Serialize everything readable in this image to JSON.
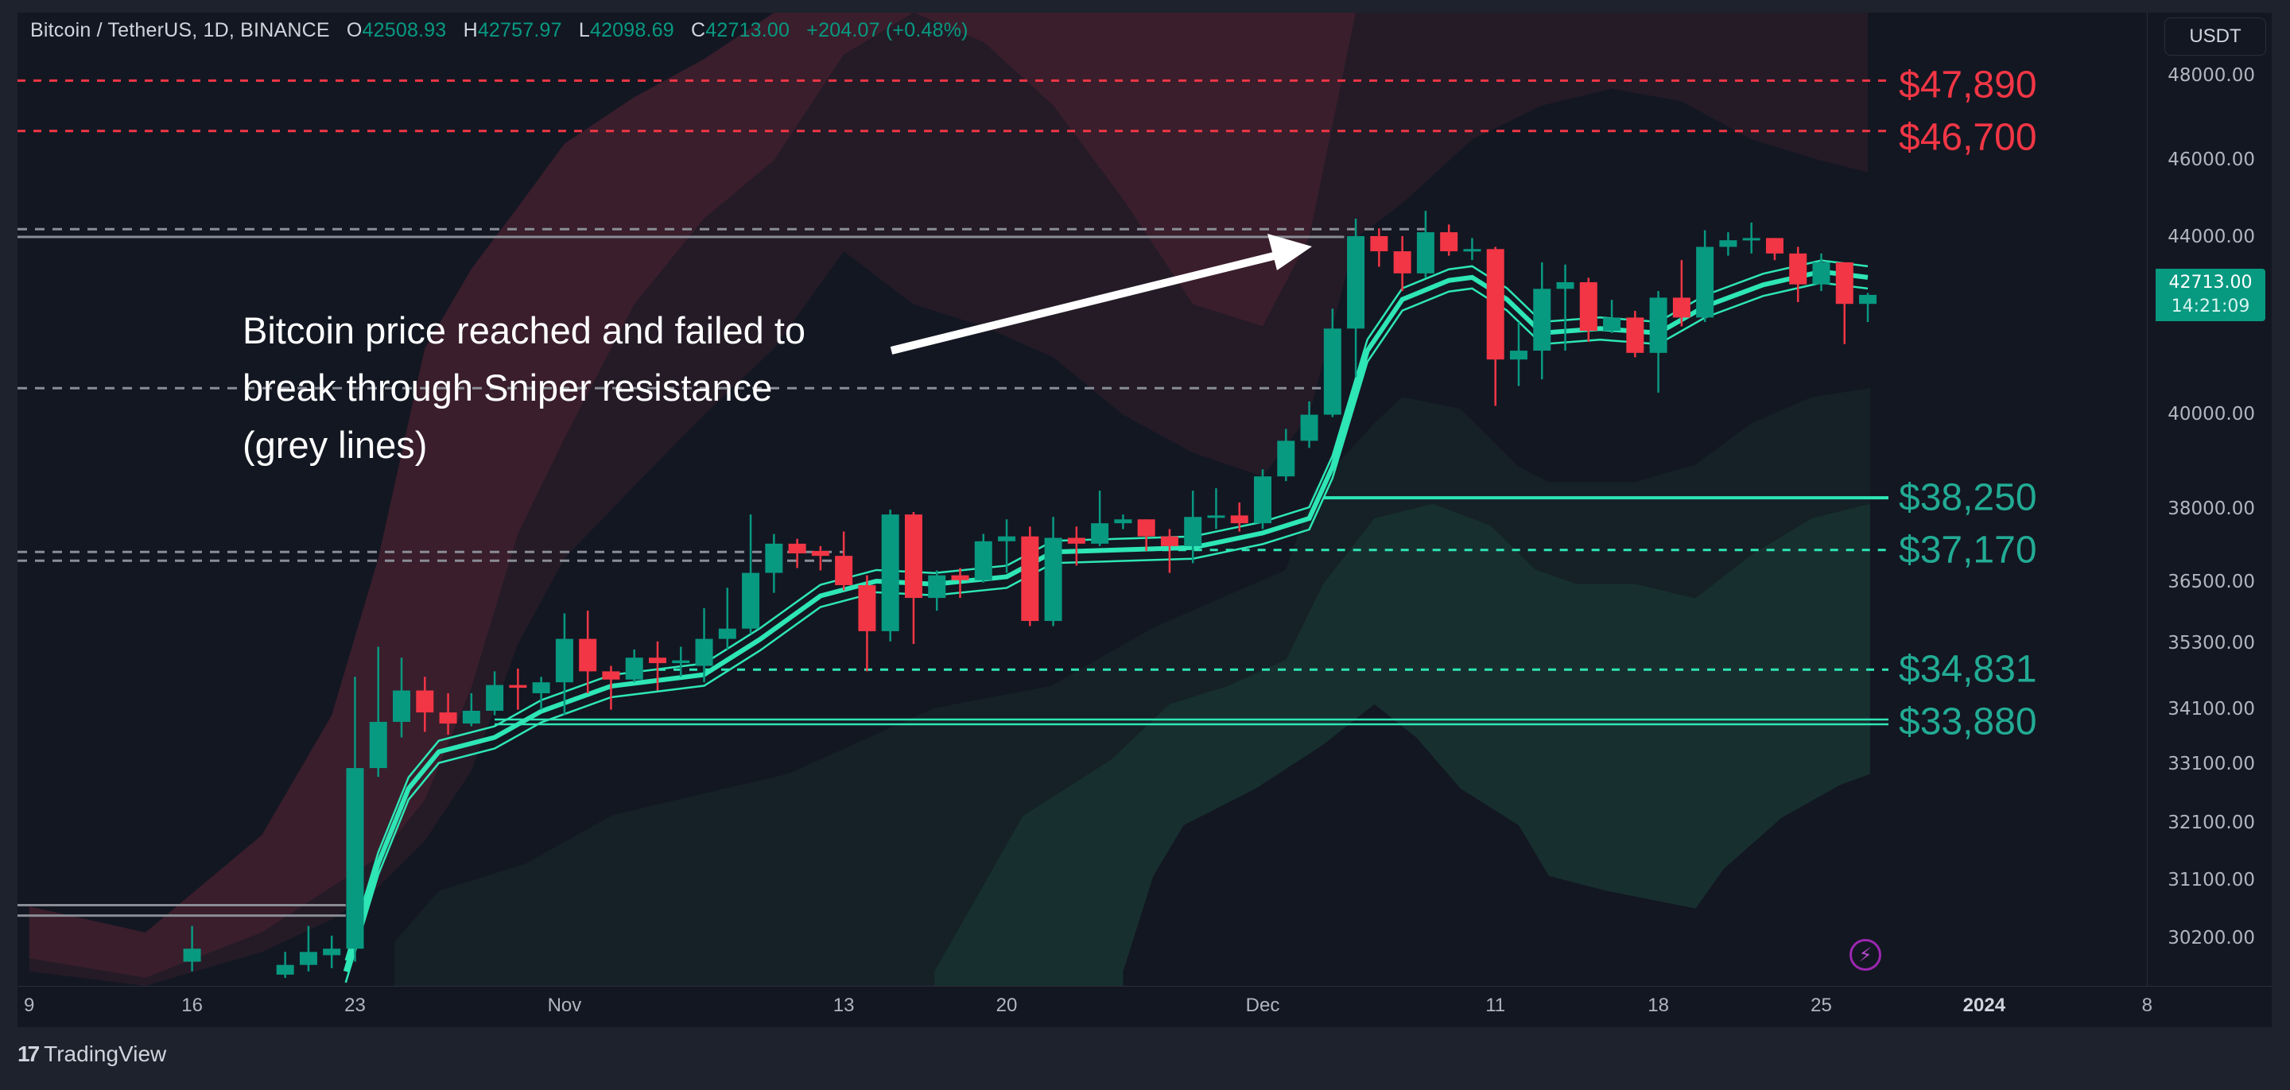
{
  "header": {
    "symbol": "Bitcoin / TetherUS, 1D, BINANCE",
    "o_label": "O",
    "o_value": "42508.93",
    "h_label": "H",
    "h_value": "42757.97",
    "l_label": "L",
    "l_value": "42098.69",
    "c_label": "C",
    "c_value": "42713.00",
    "change": "+204.07 (+0.48%)"
  },
  "currency_button": "USDT",
  "last_price": {
    "price": "42713.00",
    "countdown": "14:21:09"
  },
  "annotation": {
    "lines": [
      "Bitcoin price reached and failed to",
      "break through Sniper resistance",
      "(grey lines)"
    ]
  },
  "footer": {
    "brand": "TradingView",
    "logo_mark": "17"
  },
  "colors": {
    "up": "#089981",
    "down": "#f23645",
    "ribbon": "#2ee6b6",
    "grey": "#8a8d96",
    "level_red": "#f23645",
    "level_green": "#22ab94"
  },
  "chart_data": {
    "type": "candlestick",
    "title": "Bitcoin / TetherUS, 1D, BINANCE",
    "x_origin": "2023-10-09",
    "x_unit": "day",
    "y_scale": "price (USDT)",
    "y_ticks": [
      "48000.00",
      "46000.00",
      "44000.00",
      "40000.00",
      "38000.00",
      "36500.00",
      "35300.00",
      "34100.00",
      "33100.00",
      "32100.00",
      "31100.00",
      "30200.00"
    ],
    "x_ticks": [
      {
        "day": 0,
        "label": "9"
      },
      {
        "day": 7,
        "label": "16"
      },
      {
        "day": 14,
        "label": "23"
      },
      {
        "day": 23,
        "label": "Nov"
      },
      {
        "day": 35,
        "label": "13"
      },
      {
        "day": 42,
        "label": "20"
      },
      {
        "day": 53,
        "label": "Dec"
      },
      {
        "day": 63,
        "label": "11"
      },
      {
        "day": 70,
        "label": "18"
      },
      {
        "day": 77,
        "label": "25"
      },
      {
        "day": 84,
        "label": "2024",
        "bold": true
      },
      {
        "day": 91,
        "label": "8"
      }
    ],
    "candles": [
      [
        7,
        29850,
        30400,
        29700,
        30050
      ],
      [
        11,
        29650,
        30000,
        29600,
        29800
      ],
      [
        12,
        29800,
        30400,
        29700,
        30000
      ],
      [
        13,
        29950,
        30250,
        29750,
        30050
      ],
      [
        14,
        30050,
        34700,
        29850,
        33050
      ],
      [
        15,
        33050,
        35250,
        32900,
        33880
      ],
      [
        16,
        33880,
        35050,
        33600,
        34450
      ],
      [
        17,
        34450,
        34700,
        33700,
        34050
      ],
      [
        18,
        34050,
        34400,
        33650,
        33850
      ],
      [
        19,
        33850,
        34400,
        33800,
        34080
      ],
      [
        20,
        34080,
        34800,
        34000,
        34550
      ],
      [
        21,
        34550,
        34850,
        34100,
        34500
      ],
      [
        22,
        34400,
        34700,
        34100,
        34600
      ],
      [
        23,
        34600,
        35900,
        34000,
        35400
      ],
      [
        24,
        35400,
        35950,
        34400,
        34800
      ],
      [
        25,
        34800,
        34900,
        34100,
        34650
      ],
      [
        26,
        34650,
        35200,
        34600,
        35050
      ],
      [
        27,
        35050,
        35350,
        34450,
        34950
      ],
      [
        28,
        34950,
        35250,
        34700,
        35000
      ],
      [
        29,
        34900,
        36000,
        34600,
        35400
      ],
      [
        30,
        35400,
        36400,
        35200,
        35600
      ],
      [
        31,
        35600,
        37900,
        35500,
        36700
      ],
      [
        32,
        36700,
        37500,
        36300,
        37300
      ],
      [
        33,
        37300,
        37400,
        36800,
        37100
      ],
      [
        34,
        37150,
        37250,
        36750,
        37050
      ],
      [
        35,
        37050,
        37550,
        36350,
        36450
      ],
      [
        36,
        36450,
        36650,
        34800,
        35550
      ],
      [
        37,
        35550,
        38000,
        35350,
        37900
      ],
      [
        38,
        37900,
        37950,
        35300,
        36200
      ],
      [
        39,
        36200,
        36750,
        35950,
        36650
      ],
      [
        40,
        36650,
        36800,
        36200,
        36550
      ],
      [
        41,
        36550,
        37500,
        36500,
        37350
      ],
      [
        42,
        37350,
        37800,
        36700,
        37450
      ],
      [
        43,
        37450,
        37650,
        35650,
        35750
      ],
      [
        44,
        35750,
        37850,
        35650,
        37420
      ],
      [
        45,
        37420,
        37650,
        36850,
        37300
      ],
      [
        46,
        37300,
        38400,
        37250,
        37720
      ],
      [
        47,
        37720,
        37900,
        37600,
        37800
      ],
      [
        48,
        37800,
        37800,
        37150,
        37450
      ],
      [
        49,
        37450,
        37600,
        36700,
        37250
      ],
      [
        50,
        37250,
        38400,
        36900,
        37850
      ],
      [
        51,
        37850,
        38450,
        37600,
        37880
      ],
      [
        52,
        37880,
        38150,
        37550,
        37720
      ],
      [
        53,
        37720,
        38850,
        37600,
        38700
      ],
      [
        54,
        38700,
        39700,
        38600,
        39450
      ],
      [
        55,
        39450,
        40300,
        39300,
        40000
      ],
      [
        56,
        40000,
        42400,
        39950,
        41950
      ],
      [
        57,
        41950,
        44500,
        40850,
        44050
      ],
      [
        58,
        44050,
        44250,
        43350,
        43700
      ],
      [
        59,
        43700,
        44050,
        42800,
        43200
      ],
      [
        60,
        43200,
        44700,
        43100,
        44150
      ],
      [
        61,
        44150,
        44350,
        43600,
        43700
      ],
      [
        62,
        43700,
        44000,
        43500,
        43750
      ],
      [
        63,
        43750,
        43800,
        40200,
        41250
      ],
      [
        64,
        41250,
        42100,
        40650,
        41450
      ],
      [
        65,
        41450,
        43450,
        40800,
        42850
      ],
      [
        66,
        42850,
        43400,
        41450,
        43000
      ],
      [
        67,
        43000,
        43100,
        41650,
        41900
      ],
      [
        68,
        41900,
        42600,
        41850,
        42200
      ],
      [
        69,
        42200,
        42350,
        41300,
        41400
      ],
      [
        70,
        41400,
        42800,
        40500,
        42650
      ],
      [
        71,
        42650,
        43500,
        42000,
        42200
      ],
      [
        72,
        42200,
        44200,
        42100,
        43800
      ],
      [
        73,
        43800,
        44150,
        43600,
        43950
      ],
      [
        74,
        43950,
        44400,
        43650,
        44000
      ],
      [
        75,
        44000,
        44000,
        43500,
        43650
      ],
      [
        76,
        43650,
        43800,
        42550,
        42950
      ],
      [
        77,
        42950,
        43650,
        42800,
        43450
      ],
      [
        78,
        43450,
        43450,
        41600,
        42508.93
      ],
      [
        79,
        42508.93,
        42757.97,
        42098.69,
        42713
      ]
    ],
    "candle_fields": [
      "day",
      "open",
      "high",
      "low",
      "close"
    ],
    "ribbon_mid": [
      [
        13.6,
        29700
      ],
      [
        15,
        31400
      ],
      [
        16.3,
        32700
      ],
      [
        17.6,
        33340
      ],
      [
        20,
        33600
      ],
      [
        22,
        34070
      ],
      [
        25,
        34530
      ],
      [
        29,
        34740
      ],
      [
        31.4,
        35390
      ],
      [
        34,
        36240
      ],
      [
        36.4,
        36530
      ],
      [
        38.9,
        36470
      ],
      [
        42,
        36620
      ],
      [
        44,
        37130
      ],
      [
        50,
        37220
      ],
      [
        53,
        37520
      ],
      [
        55,
        37820
      ],
      [
        56,
        38900
      ],
      [
        57.5,
        41450
      ],
      [
        59,
        42610
      ],
      [
        61,
        43040
      ],
      [
        62,
        43110
      ],
      [
        63.5,
        42610
      ],
      [
        65,
        41850
      ],
      [
        67.5,
        41950
      ],
      [
        70,
        41850
      ],
      [
        72,
        42450
      ],
      [
        74.5,
        42940
      ],
      [
        77,
        43240
      ],
      [
        79,
        43110
      ]
    ],
    "upper_band": {
      "fields": [
        "day",
        "outer",
        "middle",
        "inner"
      ],
      "points": [
        [
          0,
          30700,
          29900,
          29700
        ],
        [
          5,
          30300,
          29600,
          29100
        ],
        [
          10,
          31900,
          30300,
          30000
        ],
        [
          13,
          34000,
          31000,
          30500
        ],
        [
          15,
          37000,
          31500,
          31000
        ],
        [
          17,
          41500,
          32500,
          31800
        ],
        [
          19,
          43300,
          34500,
          33000
        ],
        [
          21,
          44800,
          37500,
          35300
        ],
        [
          23,
          46400,
          39500,
          37000
        ],
        [
          26,
          47500,
          42500,
          38500
        ],
        [
          29,
          48400,
          44500,
          40000
        ],
        [
          32,
          52000,
          46000,
          41500
        ],
        [
          35,
          52000,
          48500,
          43700
        ],
        [
          38,
          52000,
          52000,
          42500
        ],
        [
          41,
          52000,
          48800,
          42000
        ],
        [
          44,
          52000,
          47300,
          41300
        ],
        [
          47,
          52000,
          45000,
          40000
        ],
        [
          50,
          52000,
          42500,
          39200
        ],
        [
          53,
          52000,
          42000,
          38700
        ],
        [
          55,
          52000,
          44000,
          40000
        ],
        [
          57,
          52000,
          50000,
          44000
        ],
        [
          59,
          52000,
          52000,
          44900
        ],
        [
          62,
          52000,
          52000,
          46500
        ],
        [
          65,
          52000,
          52000,
          47300
        ],
        [
          68,
          52000,
          52000,
          47700
        ],
        [
          71,
          52000,
          52000,
          47400
        ],
        [
          74,
          52000,
          52000,
          46500
        ],
        [
          77,
          52000,
          52000,
          46000
        ],
        [
          79,
          52000,
          52000,
          45700
        ]
      ]
    },
    "lower_band": {
      "outer_top": [
        [
          15.7,
          30155
        ],
        [
          17.6,
          30940
        ],
        [
          21.3,
          31390
        ],
        [
          25.1,
          32250
        ],
        [
          32.6,
          32950
        ],
        [
          38.9,
          34130
        ],
        [
          43.9,
          34530
        ],
        [
          48.3,
          35620
        ],
        [
          54,
          36760
        ],
        [
          55.2,
          38430
        ],
        [
          57.8,
          39820
        ],
        [
          59,
          40400
        ],
        [
          61.5,
          40130
        ],
        [
          64,
          38900
        ],
        [
          65.3,
          38580
        ],
        [
          69,
          38580
        ],
        [
          71.6,
          38950
        ],
        [
          74,
          39820
        ],
        [
          76.6,
          40400
        ],
        [
          79.1,
          40600
        ]
      ],
      "inner_top": [
        [
          38.9,
          29700
        ],
        [
          42.7,
          32230
        ],
        [
          46.5,
          33200
        ],
        [
          49,
          34200
        ],
        [
          51.5,
          34530
        ],
        [
          54,
          35010
        ],
        [
          55.6,
          36470
        ],
        [
          57.8,
          37820
        ],
        [
          60.3,
          38120
        ],
        [
          62.8,
          37670
        ],
        [
          64.7,
          36770
        ],
        [
          66.5,
          36470
        ],
        [
          69,
          36470
        ],
        [
          71.6,
          36190
        ],
        [
          74,
          37070
        ],
        [
          76.6,
          37820
        ],
        [
          79.1,
          38120
        ]
      ],
      "inner_bottom": [
        [
          47,
          29700
        ],
        [
          48.3,
          31180
        ],
        [
          49.6,
          32070
        ],
        [
          52.7,
          32700
        ],
        [
          55.6,
          33470
        ],
        [
          57.8,
          34200
        ],
        [
          59.6,
          33600
        ],
        [
          61.5,
          32700
        ],
        [
          64,
          32070
        ],
        [
          65.3,
          31180
        ],
        [
          67.8,
          30940
        ],
        [
          71.6,
          30670
        ],
        [
          72.8,
          31300
        ],
        [
          75.3,
          32200
        ],
        [
          77.8,
          32760
        ],
        [
          79.1,
          32950
        ]
      ]
    },
    "levels": [
      {
        "price": 47890,
        "label": "$47,890",
        "color": "red",
        "style": "dashed",
        "from_day": -1
      },
      {
        "price": 46700,
        "label": "$46,700",
        "color": "red",
        "style": "dashed",
        "from_day": -1
      },
      {
        "price": 38250,
        "label": "$38,250",
        "color": "green",
        "style": "solid",
        "from_day": 55.6
      },
      {
        "price": 37170,
        "label": "$37,170",
        "color": "green",
        "style": "dashed",
        "from_day": 48
      },
      {
        "price": 34831,
        "label": "$34,831",
        "color": "green",
        "style": "dashed",
        "from_day": 27
      },
      {
        "price": 33880,
        "label": "$33,880",
        "color": "green",
        "style": "double",
        "from_day": 20
      }
    ],
    "resistance_lines": [
      {
        "price": 44230,
        "style": "dashed",
        "to_day": 60
      },
      {
        "price": 44030,
        "style": "solid",
        "to_day": 56.5
      },
      {
        "price": 40600,
        "style": "dashed",
        "to_day": 55.5
      },
      {
        "price": 37130,
        "style": "dashed",
        "to_day": 35
      },
      {
        "price": 36950,
        "style": "dashed",
        "to_day": 35
      },
      {
        "price": 30720,
        "style": "solid",
        "to_day": 13.6
      },
      {
        "price": 30560,
        "style": "solid",
        "to_day": 13.6
      }
    ]
  }
}
